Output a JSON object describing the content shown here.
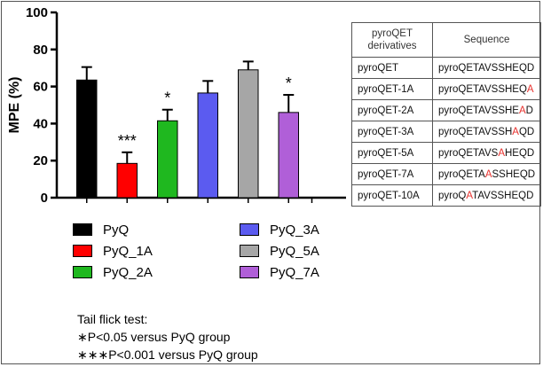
{
  "chart_data": {
    "type": "bar",
    "ylabel": "MPE (%)",
    "xlabel": "",
    "ylim": [
      0,
      100
    ],
    "yticks": [
      0,
      20,
      40,
      60,
      80,
      100
    ],
    "categories": [
      "PyQ",
      "PyQ_1A",
      "PyQ_2A",
      "PyQ_3A",
      "PyQ_5A",
      "PyQ_7A"
    ],
    "values": [
      63.5,
      18.5,
      41.5,
      56.5,
      69,
      46
    ],
    "errors": [
      7,
      6,
      6,
      6.5,
      4.5,
      9.5
    ],
    "significance": [
      "",
      "***",
      "*",
      "",
      "",
      "*"
    ],
    "colors": [
      "#000000",
      "#ff0000",
      "#1fb81f",
      "#5b5bf0",
      "#a6a6a6",
      "#b05fd8"
    ],
    "grid": false,
    "legend_position": "below"
  },
  "footnote": {
    "title": "Tail flick test:",
    "line1": "∗P<0.05 versus PyQ group",
    "line2": "∗∗∗P<0.001 versus PyQ group"
  },
  "table": {
    "headers": [
      "pyroQET derivatives",
      "Sequence"
    ],
    "rows": [
      {
        "name": "pyroQET",
        "seq": [
          "pyroQETAVSSHEQD",
          "",
          ""
        ]
      },
      {
        "name": "pyroQET-1A",
        "seq": [
          "pyroQETAVSSHEQ",
          "A",
          ""
        ]
      },
      {
        "name": "pyroQET-2A",
        "seq": [
          "pyroQETAVSSHE",
          "A",
          "D"
        ]
      },
      {
        "name": "pyroQET-3A",
        "seq": [
          "pyroQETAVSSH",
          "A",
          "QD"
        ]
      },
      {
        "name": "pyroQET-5A",
        "seq": [
          "pyroQETAVS",
          "A",
          "HEQD"
        ]
      },
      {
        "name": "pyroQET-7A",
        "seq": [
          "pyroQETA",
          "A",
          "SSHEQD"
        ]
      },
      {
        "name": "pyroQET-10A",
        "seq": [
          "pyroQ",
          "A",
          "TAVSSHEQD"
        ]
      }
    ]
  }
}
